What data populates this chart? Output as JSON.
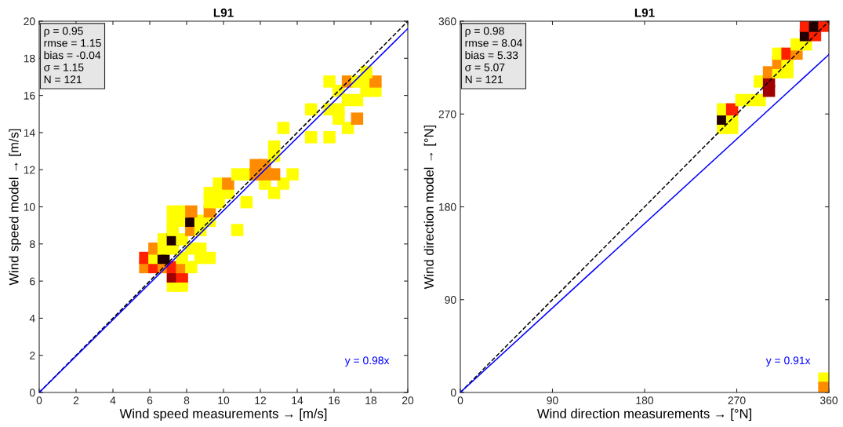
{
  "chart_data": [
    {
      "type": "scatter",
      "title": "L91",
      "xlabel": "Wind speed measurements → [m/s]",
      "ylabel": "Wind speed model → [m/s]",
      "xlim": [
        0,
        20
      ],
      "ylim": [
        0,
        20
      ],
      "xticks": [
        0,
        2,
        4,
        6,
        8,
        10,
        12,
        14,
        16,
        18,
        20
      ],
      "yticks": [
        0,
        2,
        4,
        6,
        8,
        10,
        12,
        14,
        16,
        18,
        20
      ],
      "grid": false,
      "legend": false,
      "annotations": [
        "ρ = 0.95\nrmse = 1.15\nbias = -0.04\nσ = 1.15\nN = 121",
        "y = 0.98x"
      ],
      "series": [
        {
          "marker": "square",
          "x": [
            7.25,
            7.75,
            7.25,
            7.75,
            5.75,
            6.25,
            6.75,
            7.25,
            7.75,
            8.25,
            5.75,
            6.25,
            6.75,
            7.75,
            8.75,
            9.25,
            6.25,
            6.75,
            7.25,
            8.25,
            8.75,
            6.75,
            7.25,
            7.75,
            7.25,
            8.25,
            8.75,
            10.75,
            7.25,
            7.75,
            8.25,
            8.75,
            9.25,
            7.25,
            7.75,
            8.25,
            9.25,
            9.25,
            9.75,
            11.25,
            9.25,
            9.75,
            10.25,
            12.75,
            9.75,
            10.25,
            12.25,
            13.25,
            10.75,
            11.25,
            11.75,
            12.25,
            12.75,
            13.75,
            11.75,
            12.25,
            12.75,
            12.75,
            14.75,
            15.75,
            13.25,
            16.75,
            16.25,
            17.25,
            14.75,
            15.75,
            16.25,
            16.75,
            17.25,
            16.25,
            17.75,
            18.25,
            15.75,
            16.75,
            17.25,
            17.75,
            18.25,
            17.75
          ],
          "values": [
            5.75,
            5.75,
            6.25,
            6.25,
            6.75,
            6.75,
            6.75,
            6.75,
            6.75,
            6.75,
            7.25,
            7.25,
            7.25,
            7.25,
            7.25,
            7.25,
            7.75,
            7.75,
            7.75,
            7.75,
            7.75,
            8.25,
            8.25,
            8.25,
            8.75,
            8.75,
            8.75,
            8.75,
            9.25,
            9.25,
            9.25,
            9.25,
            9.25,
            9.75,
            9.75,
            9.75,
            9.75,
            10.25,
            10.25,
            10.25,
            10.75,
            10.75,
            10.75,
            10.75,
            11.25,
            11.25,
            11.25,
            11.25,
            11.75,
            11.75,
            11.75,
            11.75,
            11.75,
            11.75,
            12.25,
            12.25,
            12.75,
            13.25,
            13.75,
            13.75,
            14.25,
            14.25,
            14.75,
            14.75,
            15.25,
            15.25,
            15.25,
            15.75,
            15.75,
            16.25,
            16.25,
            16.25,
            16.75,
            16.75,
            16.75,
            16.75,
            16.75,
            17.25
          ],
          "colors": [
            "#ffff00",
            "#ffff00",
            "#a00000",
            "#ff2000",
            "#ff8c00",
            "#ff2000",
            "#ff8c00",
            "#ff2000",
            "#ff8c00",
            "#ffff00",
            "#ff2000",
            "#ffff00",
            "#200000",
            "#ffff00",
            "#ffff00",
            "#ffff00",
            "#ff8c00",
            "#ffff00",
            "#ffff00",
            "#ffff00",
            "#ffff00",
            "#ffff00",
            "#200000",
            "#ffff00",
            "#ffff00",
            "#ff8c00",
            "#ffff00",
            "#ffff00",
            "#ffff00",
            "#ffff00",
            "#200000",
            "#ffff00",
            "#ffff00",
            "#ffff00",
            "#ffff00",
            "#ff8c00",
            "#ff8c00",
            "#ffff00",
            "#ffff00",
            "#ffff00",
            "#ffff00",
            "#ffff00",
            "#ffff00",
            "#ffff00",
            "#ffff00",
            "#ff8c00",
            "#ffff00",
            "#ffff00",
            "#ffff00",
            "#ffff00",
            "#ff8c00",
            "#ff8c00",
            "#ff8c00",
            "#ffff00",
            "#ff8c00",
            "#ff8c00",
            "#ffff00",
            "#ffff00",
            "#ffff00",
            "#ffff00",
            "#ffff00",
            "#ffff00",
            "#ffff00",
            "#ff8c00",
            "#ffff00",
            "#ffff00",
            "#ffff00",
            "#ffff00",
            "#ffff00",
            "#ffff00",
            "#ffff00",
            "#ffff00",
            "#ffff00",
            "#ff8c00",
            "#ffff00",
            "#ffff00",
            "#ff8c00",
            "#ffff00"
          ]
        },
        {
          "type": "line",
          "x": [
            0,
            20
          ],
          "values": [
            0,
            20
          ],
          "color": "#000000",
          "line_style": "dashed"
        },
        {
          "type": "line",
          "x": [
            0,
            20
          ],
          "values": [
            0,
            19.6
          ],
          "color": "#0000ff",
          "line_style": "solid"
        }
      ]
    },
    {
      "type": "scatter",
      "title": "L91",
      "xlabel": "Wind direction measurements → [°N]",
      "ylabel": "Wind direction model → [°N]",
      "xlim": [
        0,
        360
      ],
      "ylim": [
        0,
        360
      ],
      "xticks": [
        0,
        90,
        180,
        270,
        360
      ],
      "yticks": [
        0,
        90,
        180,
        270,
        360
      ],
      "grid": false,
      "legend": false,
      "annotations": [
        "ρ = 0.98\nrmse = 8.04\nbias = 5.33\nσ = 5.07\nN = 121",
        "y = 0.91x"
      ],
      "series": [
        {
          "marker": "square",
          "x": [
            256.5,
            265.5,
            256.5,
            265.5,
            256.5,
            265.5,
            274.5,
            283.5,
            292.5,
            292.5,
            301.5,
            301.5,
            301.5,
            310.5,
            319.5,
            310.5,
            319.5,
            310.5,
            319.5,
            328.5,
            328.5,
            337.5,
            337.5,
            346.5,
            337.5,
            346.5,
            355.5,
            355.5,
            355.5
          ],
          "values": [
            256.5,
            256.5,
            265.5,
            265.5,
            274.5,
            274.5,
            283.5,
            283.5,
            283.5,
            301.5,
            292.5,
            301.5,
            310.5,
            310.5,
            310.5,
            319.5,
            319.5,
            328.5,
            328.5,
            328.5,
            337.5,
            337.5,
            346.5,
            346.5,
            355.5,
            355.5,
            355.5,
            13.5,
            4.5
          ],
          "colors": [
            "#ffff00",
            "#ffff00",
            "#200000",
            "#ffff00",
            "#ffff00",
            "#ff2000",
            "#ffff00",
            "#ffff00",
            "#ffff00",
            "#ffff00",
            "#a00000",
            "#a00000",
            "#ff8c00",
            "#ffff00",
            "#ffff00",
            "#ff8c00",
            "#ffff00",
            "#ffff00",
            "#ff2000",
            "#ff8c00",
            "#ffff00",
            "#ffff00",
            "#200000",
            "#ff2000",
            "#ff2000",
            "#200000",
            "#ff2000",
            "#ffff00",
            "#ff8c00"
          ]
        },
        {
          "type": "line",
          "x": [
            0,
            360
          ],
          "values": [
            0,
            360
          ],
          "color": "#000000",
          "line_style": "dashed"
        },
        {
          "type": "line",
          "x": [
            0,
            360
          ],
          "values": [
            0,
            327.6
          ],
          "color": "#0000ff",
          "line_style": "solid"
        }
      ]
    }
  ]
}
